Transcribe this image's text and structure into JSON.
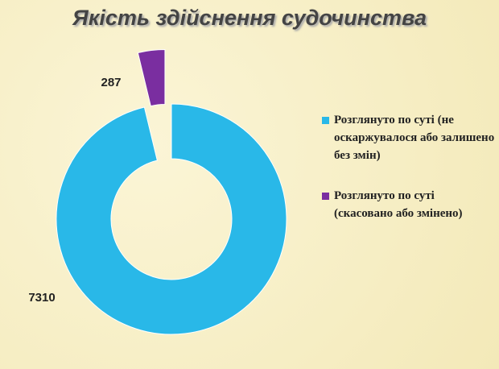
{
  "chart_data": {
    "type": "donut",
    "title": "Якість здійснення судочинства",
    "categories": [
      "Розглянуто по суті (не оскаржувалося або залишено без змін)",
      "Розглянуто по суті (скасовано або змінено)"
    ],
    "values": [
      7310,
      287
    ],
    "colors": [
      "#29b8e8",
      "#7a2ea0"
    ],
    "legend": "right"
  }
}
